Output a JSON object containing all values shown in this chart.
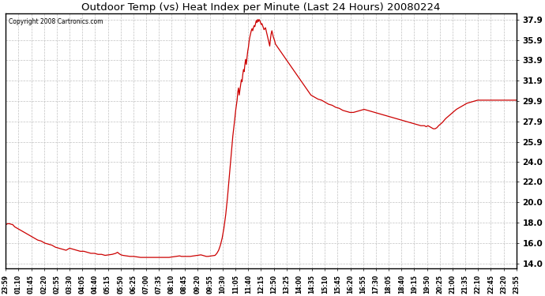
{
  "title": "Outdoor Temp (vs) Heat Index per Minute (Last 24 Hours) 20080224",
  "copyright_text": "Copyright 2008 Cartronics.com",
  "line_color": "#CC0000",
  "background_color": "#ffffff",
  "plot_bg_color": "#ffffff",
  "grid_color": "#bbbbbb",
  "yticks": [
    14.0,
    16.0,
    18.0,
    20.0,
    22.0,
    24.0,
    25.9,
    27.9,
    29.9,
    31.9,
    33.9,
    35.9,
    37.9
  ],
  "xtick_labels": [
    "23:59",
    "01:10",
    "01:45",
    "02:20",
    "02:55",
    "03:30",
    "04:05",
    "04:40",
    "05:15",
    "05:50",
    "06:25",
    "07:00",
    "07:35",
    "08:10",
    "08:45",
    "09:20",
    "09:55",
    "10:30",
    "11:05",
    "11:40",
    "12:15",
    "12:50",
    "13:25",
    "14:00",
    "14:35",
    "15:10",
    "15:45",
    "16:20",
    "16:55",
    "17:30",
    "18:05",
    "18:40",
    "19:15",
    "19:50",
    "20:25",
    "21:00",
    "21:35",
    "22:10",
    "22:45",
    "23:20",
    "23:55"
  ],
  "ylim": [
    13.5,
    38.5
  ],
  "xlim": [
    0,
    1439
  ],
  "data_points": [
    [
      0,
      17.8
    ],
    [
      5,
      17.9
    ],
    [
      10,
      17.9
    ],
    [
      15,
      17.85
    ],
    [
      20,
      17.8
    ],
    [
      25,
      17.6
    ],
    [
      30,
      17.5
    ],
    [
      40,
      17.3
    ],
    [
      50,
      17.1
    ],
    [
      60,
      16.9
    ],
    [
      70,
      16.7
    ],
    [
      80,
      16.5
    ],
    [
      90,
      16.3
    ],
    [
      100,
      16.2
    ],
    [
      110,
      16.0
    ],
    [
      120,
      15.9
    ],
    [
      130,
      15.8
    ],
    [
      140,
      15.6
    ],
    [
      150,
      15.5
    ],
    [
      160,
      15.4
    ],
    [
      170,
      15.3
    ],
    [
      180,
      15.5
    ],
    [
      190,
      15.4
    ],
    [
      200,
      15.3
    ],
    [
      210,
      15.2
    ],
    [
      220,
      15.2
    ],
    [
      230,
      15.1
    ],
    [
      240,
      15.0
    ],
    [
      250,
      15.0
    ],
    [
      260,
      14.9
    ],
    [
      270,
      14.9
    ],
    [
      280,
      14.8
    ],
    [
      290,
      14.85
    ],
    [
      300,
      14.9
    ],
    [
      310,
      15.0
    ],
    [
      315,
      15.1
    ],
    [
      320,
      14.95
    ],
    [
      325,
      14.85
    ],
    [
      330,
      14.8
    ],
    [
      340,
      14.75
    ],
    [
      350,
      14.7
    ],
    [
      360,
      14.7
    ],
    [
      370,
      14.65
    ],
    [
      380,
      14.6
    ],
    [
      390,
      14.6
    ],
    [
      400,
      14.6
    ],
    [
      410,
      14.6
    ],
    [
      420,
      14.6
    ],
    [
      430,
      14.6
    ],
    [
      440,
      14.6
    ],
    [
      450,
      14.6
    ],
    [
      460,
      14.6
    ],
    [
      470,
      14.65
    ],
    [
      480,
      14.7
    ],
    [
      490,
      14.75
    ],
    [
      495,
      14.7
    ],
    [
      500,
      14.7
    ],
    [
      510,
      14.7
    ],
    [
      520,
      14.7
    ],
    [
      530,
      14.75
    ],
    [
      540,
      14.8
    ],
    [
      550,
      14.85
    ],
    [
      555,
      14.8
    ],
    [
      560,
      14.75
    ],
    [
      565,
      14.7
    ],
    [
      570,
      14.7
    ],
    [
      580,
      14.75
    ],
    [
      590,
      14.8
    ],
    [
      595,
      15.0
    ],
    [
      600,
      15.3
    ],
    [
      605,
      15.8
    ],
    [
      610,
      16.5
    ],
    [
      615,
      17.5
    ],
    [
      620,
      18.8
    ],
    [
      625,
      20.5
    ],
    [
      630,
      22.5
    ],
    [
      635,
      24.5
    ],
    [
      640,
      26.5
    ],
    [
      645,
      28.0
    ],
    [
      648,
      29.0
    ],
    [
      650,
      29.5
    ],
    [
      652,
      30.0
    ],
    [
      654,
      30.8
    ],
    [
      656,
      31.2
    ],
    [
      658,
      30.5
    ],
    [
      660,
      31.0
    ],
    [
      662,
      31.5
    ],
    [
      664,
      32.0
    ],
    [
      666,
      31.8
    ],
    [
      668,
      32.5
    ],
    [
      670,
      33.0
    ],
    [
      672,
      32.8
    ],
    [
      674,
      33.5
    ],
    [
      676,
      34.0
    ],
    [
      678,
      33.5
    ],
    [
      680,
      34.2
    ],
    [
      682,
      34.8
    ],
    [
      684,
      35.2
    ],
    [
      686,
      35.8
    ],
    [
      688,
      36.2
    ],
    [
      690,
      36.5
    ],
    [
      692,
      36.8
    ],
    [
      694,
      37.0
    ],
    [
      696,
      36.8
    ],
    [
      698,
      37.1
    ],
    [
      700,
      37.3
    ],
    [
      702,
      37.2
    ],
    [
      704,
      37.5
    ],
    [
      706,
      37.8
    ],
    [
      708,
      37.6
    ],
    [
      710,
      37.9
    ],
    [
      712,
      37.7
    ],
    [
      714,
      37.9
    ],
    [
      716,
      37.8
    ],
    [
      718,
      37.6
    ],
    [
      720,
      37.4
    ],
    [
      722,
      37.5
    ],
    [
      724,
      37.3
    ],
    [
      726,
      37.1
    ],
    [
      728,
      36.9
    ],
    [
      730,
      37.0
    ],
    [
      732,
      37.1
    ],
    [
      734,
      36.8
    ],
    [
      736,
      36.5
    ],
    [
      738,
      36.2
    ],
    [
      740,
      35.9
    ],
    [
      742,
      35.6
    ],
    [
      744,
      35.3
    ],
    [
      746,
      36.0
    ],
    [
      748,
      36.5
    ],
    [
      750,
      36.8
    ],
    [
      752,
      36.5
    ],
    [
      754,
      36.2
    ],
    [
      756,
      36.0
    ],
    [
      758,
      35.8
    ],
    [
      760,
      35.5
    ],
    [
      770,
      35.0
    ],
    [
      780,
      34.5
    ],
    [
      790,
      34.0
    ],
    [
      800,
      33.5
    ],
    [
      810,
      33.0
    ],
    [
      820,
      32.5
    ],
    [
      830,
      32.0
    ],
    [
      840,
      31.5
    ],
    [
      850,
      31.0
    ],
    [
      860,
      30.5
    ],
    [
      870,
      30.3
    ],
    [
      880,
      30.1
    ],
    [
      890,
      30.0
    ],
    [
      900,
      29.8
    ],
    [
      910,
      29.6
    ],
    [
      920,
      29.5
    ],
    [
      930,
      29.3
    ],
    [
      940,
      29.2
    ],
    [
      950,
      29.0
    ],
    [
      960,
      28.9
    ],
    [
      970,
      28.8
    ],
    [
      980,
      28.8
    ],
    [
      990,
      28.9
    ],
    [
      1000,
      29.0
    ],
    [
      1010,
      29.1
    ],
    [
      1020,
      29.0
    ],
    [
      1030,
      28.9
    ],
    [
      1040,
      28.8
    ],
    [
      1050,
      28.7
    ],
    [
      1060,
      28.6
    ],
    [
      1070,
      28.5
    ],
    [
      1080,
      28.4
    ],
    [
      1090,
      28.3
    ],
    [
      1100,
      28.2
    ],
    [
      1110,
      28.1
    ],
    [
      1120,
      28.0
    ],
    [
      1130,
      27.9
    ],
    [
      1140,
      27.8
    ],
    [
      1150,
      27.7
    ],
    [
      1160,
      27.6
    ],
    [
      1170,
      27.5
    ],
    [
      1180,
      27.5
    ],
    [
      1185,
      27.4
    ],
    [
      1190,
      27.5
    ],
    [
      1195,
      27.4
    ],
    [
      1200,
      27.3
    ],
    [
      1205,
      27.2
    ],
    [
      1210,
      27.2
    ],
    [
      1215,
      27.3
    ],
    [
      1220,
      27.5
    ],
    [
      1230,
      27.8
    ],
    [
      1240,
      28.2
    ],
    [
      1250,
      28.5
    ],
    [
      1260,
      28.8
    ],
    [
      1270,
      29.1
    ],
    [
      1280,
      29.3
    ],
    [
      1290,
      29.5
    ],
    [
      1300,
      29.7
    ],
    [
      1310,
      29.8
    ],
    [
      1320,
      29.9
    ],
    [
      1330,
      30.0
    ],
    [
      1340,
      30.0
    ],
    [
      1350,
      30.0
    ],
    [
      1360,
      30.0
    ],
    [
      1370,
      30.0
    ],
    [
      1380,
      30.0
    ],
    [
      1390,
      30.0
    ],
    [
      1400,
      30.0
    ],
    [
      1410,
      30.0
    ],
    [
      1420,
      30.0
    ],
    [
      1430,
      30.0
    ],
    [
      1439,
      30.0
    ]
  ]
}
